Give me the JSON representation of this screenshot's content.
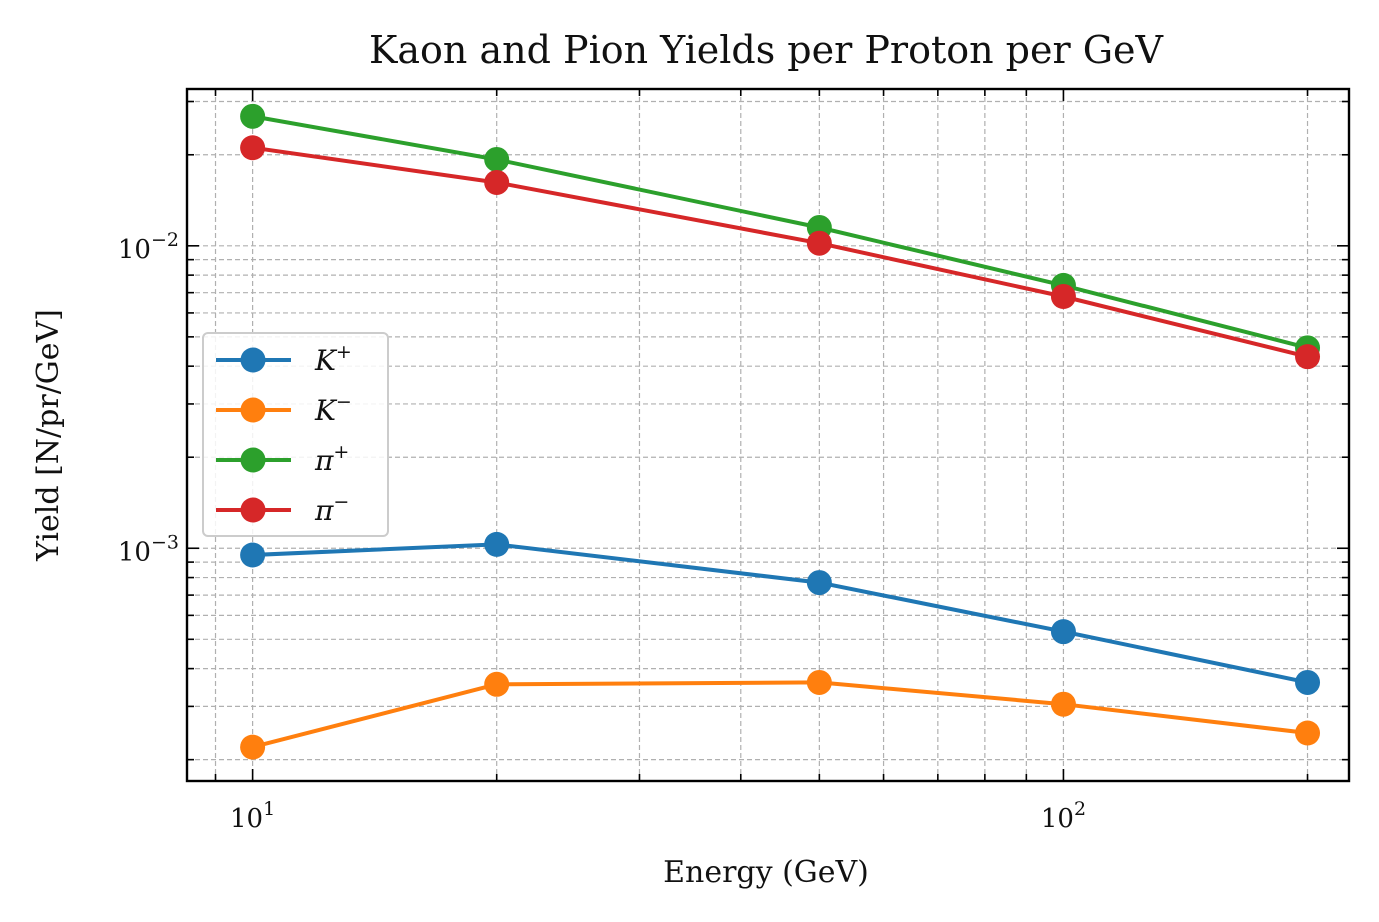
{
  "chart_data": {
    "type": "line",
    "title": "Kaon and Pion Yields per Proton per GeV",
    "xlabel": "Energy (GeV)",
    "ylabel": "Yield [N/pr/GeV]",
    "xscale": "log",
    "yscale": "log",
    "xlim": [
      8.3,
      225
    ],
    "ylim": [
      0.00017,
      0.033
    ],
    "grid": true,
    "legend_position": "center-left",
    "x": [
      10,
      20,
      50,
      100,
      200
    ],
    "x_ticks": [
      {
        "value": 10,
        "base": "10",
        "exp": "1"
      },
      {
        "value": 100,
        "base": "10",
        "exp": "2"
      }
    ],
    "y_ticks": [
      {
        "value": 0.001,
        "base": "10",
        "exp": "−3"
      },
      {
        "value": 0.01,
        "base": "10",
        "exp": "−2"
      }
    ],
    "series": [
      {
        "name": "K",
        "sup": "+",
        "color": "#1f77b4",
        "values": [
          0.00095,
          0.00103,
          0.00077,
          0.00053,
          0.00036
        ]
      },
      {
        "name": "K",
        "sup": "−",
        "color": "#ff7f0e",
        "values": [
          0.00022,
          0.000355,
          0.00036,
          0.000305,
          0.000245
        ]
      },
      {
        "name": "π",
        "sup": "+",
        "color": "#2ca02c",
        "values": [
          0.0268,
          0.0193,
          0.0115,
          0.0074,
          0.0046
        ]
      },
      {
        "name": "π",
        "sup": "−",
        "color": "#d62728",
        "values": [
          0.0211,
          0.0162,
          0.0102,
          0.0068,
          0.0043
        ]
      }
    ]
  }
}
